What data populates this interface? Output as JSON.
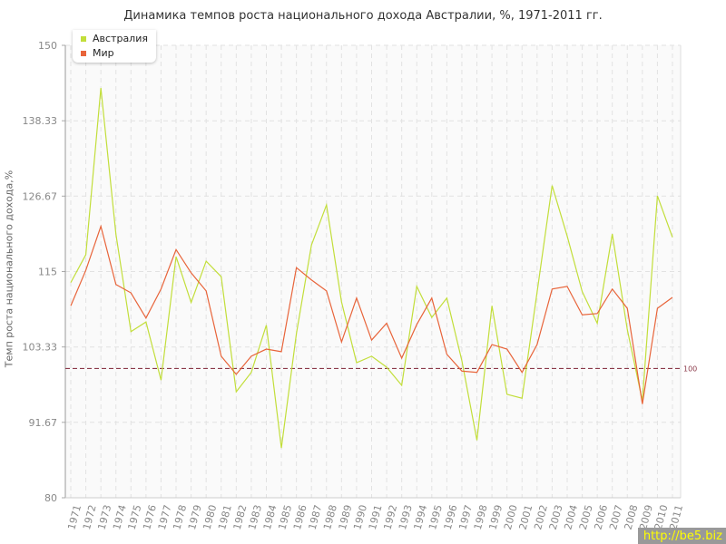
{
  "chart_data": {
    "type": "line",
    "title": "Динамика темпов роста национального дохода Австралии, %, 1971-2011 гг.",
    "xlabel": "",
    "ylabel": "Темп роста национального дохода,%",
    "ylim": [
      80,
      150
    ],
    "yticks": [
      "80",
      "91.67",
      "103.33",
      "115",
      "126.67",
      "138.33",
      "150"
    ],
    "grid": true,
    "legend_position": "top-left",
    "reference_line": {
      "value": 100,
      "label": "100",
      "color": "#8b3a4a"
    },
    "categories": [
      "1971",
      "1972",
      "1973",
      "1974",
      "1975",
      "1976",
      "1977",
      "1978",
      "1979",
      "1980",
      "1981",
      "1982",
      "1983",
      "1984",
      "1985",
      "1986",
      "1987",
      "1988",
      "1989",
      "1990",
      "1991",
      "1992",
      "1993",
      "1994",
      "1995",
      "1996",
      "1997",
      "1998",
      "1999",
      "2000",
      "2001",
      "2002",
      "2003",
      "2004",
      "2005",
      "2006",
      "2007",
      "2008",
      "2009",
      "2010",
      "2011"
    ],
    "series": [
      {
        "name": "Австралия",
        "color": "#c2de3a",
        "values": [
          113.3,
          117.6,
          143.4,
          120.8,
          105.7,
          107.2,
          98.2,
          117.3,
          110.2,
          116.6,
          114.2,
          96.4,
          99.4,
          106.7,
          87.7,
          105.4,
          119.1,
          125.3,
          110.3,
          100.9,
          101.9,
          100.2,
          97.4,
          112.7,
          107.9,
          110.9,
          101.2,
          88.9,
          109.7,
          96.0,
          95.4,
          111.8,
          128.3,
          120.5,
          111.9,
          107.0,
          120.8,
          106.0,
          95.0,
          126.7,
          120.3
        ]
      },
      {
        "name": "Мир",
        "color": "#e8643a",
        "values": [
          109.7,
          115.2,
          122.0,
          113.0,
          111.7,
          107.8,
          112.3,
          118.4,
          114.8,
          112.0,
          101.9,
          99.1,
          101.9,
          103.0,
          102.6,
          115.6,
          113.7,
          112.0,
          104.1,
          110.9,
          104.4,
          107.0,
          101.6,
          106.8,
          110.9,
          102.2,
          99.6,
          99.4,
          103.7,
          103.0,
          99.4,
          103.7,
          112.3,
          112.7,
          108.3,
          108.5,
          112.3,
          109.3,
          94.5,
          109.3,
          111.0
        ]
      }
    ]
  },
  "watermark": "http://be5.biz"
}
